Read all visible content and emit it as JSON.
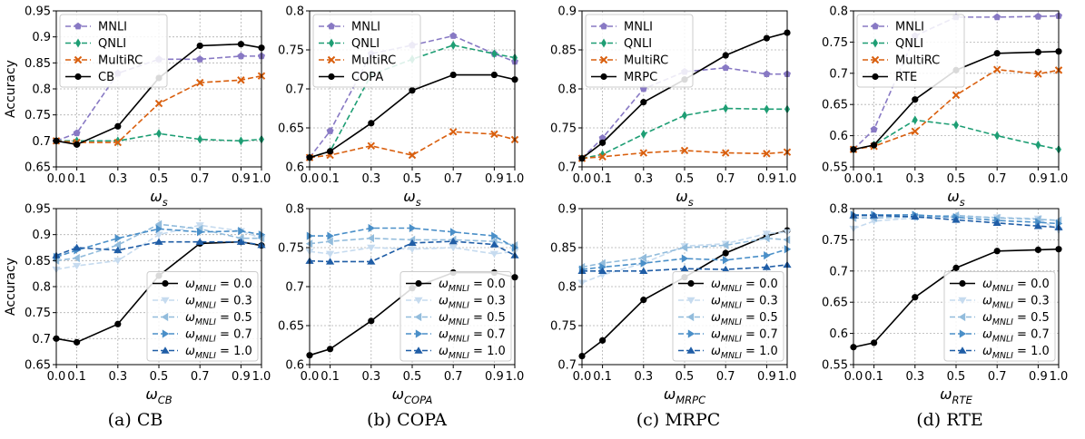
{
  "captions": [
    "(a) CB",
    "(b) COPA",
    "(c) MRPC",
    "(d) RTE"
  ],
  "colors": {
    "MNLI": "#8879c4",
    "QNLI": "#1e9e74",
    "MultiRC": "#d95f0e",
    "target": "#000000",
    "w03": "#c6dbef",
    "w05": "#92bcdc",
    "w07": "#4a8fc8",
    "w10": "#1f5da6"
  },
  "chart_data": [
    {
      "type": "line",
      "row": 0,
      "col": 0,
      "ylabel": "Accuracy",
      "xlabel_base": "ω",
      "xlabel_sub": "s",
      "x": [
        0.0,
        0.1,
        0.3,
        0.5,
        0.7,
        0.9,
        1.0
      ],
      "xticks": [
        "0.0",
        "0.1",
        "0.3",
        "0.5",
        "0.7",
        "0.9",
        "1.0"
      ],
      "ylim": [
        0.65,
        0.95
      ],
      "yticks": [
        "0.65",
        "0.7",
        "0.75",
        "0.8",
        "0.85",
        "0.9",
        "0.95"
      ],
      "legend_loc": "top-left",
      "grid": true,
      "series": [
        {
          "name": "MNLI",
          "color_key": "MNLI",
          "marker": "pentagon",
          "dash": "dashed",
          "values": [
            0.7,
            0.715,
            0.83,
            0.857,
            0.857,
            0.863,
            0.863
          ]
        },
        {
          "name": "QNLI",
          "color_key": "QNLI",
          "marker": "diamond",
          "dash": "dashed",
          "values": [
            0.7,
            0.7,
            0.7,
            0.714,
            0.703,
            0.7,
            0.703
          ]
        },
        {
          "name": "MultiRC",
          "color_key": "MultiRC",
          "marker": "x",
          "dash": "dashed",
          "values": [
            0.7,
            0.697,
            0.697,
            0.772,
            0.812,
            0.817,
            0.825
          ]
        },
        {
          "name": "CB",
          "color_key": "target",
          "marker": "circle",
          "dash": "solid",
          "values": [
            0.7,
            0.693,
            0.728,
            0.821,
            0.883,
            0.886,
            0.879
          ]
        }
      ]
    },
    {
      "type": "line",
      "row": 0,
      "col": 1,
      "ylabel": "",
      "xlabel_base": "ω",
      "xlabel_sub": "s",
      "x": [
        0.0,
        0.1,
        0.3,
        0.5,
        0.7,
        0.9,
        1.0
      ],
      "xticks": [
        "0.0",
        "0.1",
        "0.3",
        "0.5",
        "0.7",
        "0.9",
        "1.0"
      ],
      "ylim": [
        0.6,
        0.8
      ],
      "yticks": [
        "0.6",
        "0.65",
        "0.7",
        "0.75",
        "0.8"
      ],
      "legend_loc": "top-left",
      "grid": true,
      "series": [
        {
          "name": "MNLI",
          "color_key": "MNLI",
          "marker": "pentagon",
          "dash": "dashed",
          "values": [
            0.612,
            0.646,
            0.745,
            0.756,
            0.768,
            0.745,
            0.735
          ]
        },
        {
          "name": "QNLI",
          "color_key": "QNLI",
          "marker": "diamond",
          "dash": "dashed",
          "values": [
            0.612,
            0.62,
            0.718,
            0.738,
            0.756,
            0.745,
            0.74
          ]
        },
        {
          "name": "MultiRC",
          "color_key": "MultiRC",
          "marker": "x",
          "dash": "dashed",
          "values": [
            0.612,
            0.615,
            0.627,
            0.615,
            0.645,
            0.642,
            0.635
          ]
        },
        {
          "name": "COPA",
          "color_key": "target",
          "marker": "circle",
          "dash": "solid",
          "values": [
            0.612,
            0.62,
            0.656,
            0.698,
            0.718,
            0.718,
            0.712
          ]
        }
      ]
    },
    {
      "type": "line",
      "row": 0,
      "col": 2,
      "ylabel": "",
      "xlabel_base": "ω",
      "xlabel_sub": "s",
      "x": [
        0.0,
        0.1,
        0.3,
        0.5,
        0.7,
        0.9,
        1.0
      ],
      "xticks": [
        "0.0",
        "0.1",
        "0.3",
        "0.5",
        "0.7",
        "0.9",
        "1.0"
      ],
      "ylim": [
        0.7,
        0.9
      ],
      "yticks": [
        "0.7",
        "0.75",
        "0.8",
        "0.85",
        "0.9"
      ],
      "legend_loc": "top-left",
      "grid": true,
      "series": [
        {
          "name": "MNLI",
          "color_key": "MNLI",
          "marker": "pentagon",
          "dash": "dashed",
          "values": [
            0.711,
            0.737,
            0.8,
            0.822,
            0.827,
            0.819,
            0.819
          ]
        },
        {
          "name": "QNLI",
          "color_key": "QNLI",
          "marker": "diamond",
          "dash": "dashed",
          "values": [
            0.711,
            0.716,
            0.742,
            0.766,
            0.775,
            0.774,
            0.774
          ]
        },
        {
          "name": "MultiRC",
          "color_key": "MultiRC",
          "marker": "x",
          "dash": "dashed",
          "values": [
            0.711,
            0.713,
            0.718,
            0.721,
            0.718,
            0.717,
            0.719
          ]
        },
        {
          "name": "MRPC",
          "color_key": "target",
          "marker": "circle",
          "dash": "solid",
          "values": [
            0.711,
            0.731,
            0.783,
            0.812,
            0.843,
            0.865,
            0.872
          ]
        }
      ]
    },
    {
      "type": "line",
      "row": 0,
      "col": 3,
      "ylabel": "",
      "xlabel_base": "ω",
      "xlabel_sub": "s",
      "x": [
        0.0,
        0.1,
        0.3,
        0.5,
        0.7,
        0.9,
        1.0
      ],
      "xticks": [
        "0.0",
        "0.1",
        "0.3",
        "0.5",
        "0.7",
        "0.9",
        "1.0"
      ],
      "ylim": [
        0.55,
        0.8
      ],
      "yticks": [
        "0.55",
        "0.6",
        "0.65",
        "0.7",
        "0.75",
        "0.8"
      ],
      "legend_loc": "top-left",
      "grid": true,
      "series": [
        {
          "name": "MNLI",
          "color_key": "MNLI",
          "marker": "pentagon",
          "dash": "dashed",
          "values": [
            0.578,
            0.61,
            0.76,
            0.79,
            0.79,
            0.791,
            0.792
          ]
        },
        {
          "name": "QNLI",
          "color_key": "QNLI",
          "marker": "diamond",
          "dash": "dashed",
          "values": [
            0.578,
            0.585,
            0.625,
            0.617,
            0.6,
            0.585,
            0.578
          ]
        },
        {
          "name": "MultiRC",
          "color_key": "MultiRC",
          "marker": "x",
          "dash": "dashed",
          "values": [
            0.578,
            0.583,
            0.607,
            0.665,
            0.706,
            0.699,
            0.705
          ]
        },
        {
          "name": "RTE",
          "color_key": "target",
          "marker": "circle",
          "dash": "solid",
          "values": [
            0.578,
            0.585,
            0.658,
            0.705,
            0.732,
            0.734,
            0.735
          ]
        }
      ]
    },
    {
      "type": "line",
      "row": 1,
      "col": 0,
      "ylabel": "Accuracy",
      "xlabel_base": "ω",
      "xlabel_sub": "CB",
      "x": [
        0.0,
        0.1,
        0.3,
        0.5,
        0.7,
        0.9,
        1.0
      ],
      "xticks": [
        "0.0",
        "0.1",
        "0.3",
        "0.5",
        "0.7",
        "0.9",
        "1.0"
      ],
      "ylim": [
        0.65,
        0.95
      ],
      "yticks": [
        "0.65",
        "0.7",
        "0.75",
        "0.8",
        "0.85",
        "0.9",
        "0.95"
      ],
      "legend_loc": "bottom-right",
      "grid": true,
      "series": [
        {
          "name_base": "ω",
          "name_sub": "MNLI",
          "name_rest": " = 0.0",
          "color_key": "target",
          "marker": "circle",
          "dash": "solid",
          "values": [
            0.7,
            0.693,
            0.728,
            0.821,
            0.883,
            0.886,
            0.879
          ]
        },
        {
          "name_base": "ω",
          "name_sub": "MNLI",
          "name_rest": " = 0.3",
          "color_key": "w03",
          "marker": "tri-down",
          "dash": "dashed",
          "values": [
            0.833,
            0.84,
            0.85,
            0.9,
            0.918,
            0.907,
            0.893
          ]
        },
        {
          "name_base": "ω",
          "name_sub": "MNLI",
          "name_rest": " = 0.5",
          "color_key": "w05",
          "marker": "tri-left",
          "dash": "dashed",
          "values": [
            0.85,
            0.855,
            0.88,
            0.92,
            0.911,
            0.893,
            0.893
          ]
        },
        {
          "name_base": "ω",
          "name_sub": "MNLI",
          "name_rest": " = 0.7",
          "color_key": "w07",
          "marker": "tri-right",
          "dash": "dashed",
          "values": [
            0.857,
            0.87,
            0.893,
            0.911,
            0.905,
            0.907,
            0.9
          ]
        },
        {
          "name_base": "ω",
          "name_sub": "MNLI",
          "name_rest": " = 1.0",
          "color_key": "w10",
          "marker": "tri-up",
          "dash": "dashed",
          "values": [
            0.86,
            0.875,
            0.87,
            0.886,
            0.886,
            0.886,
            0.88
          ]
        }
      ]
    },
    {
      "type": "line",
      "row": 1,
      "col": 1,
      "ylabel": "",
      "xlabel_base": "ω",
      "xlabel_sub": "COPA",
      "x": [
        0.0,
        0.1,
        0.3,
        0.5,
        0.7,
        0.9,
        1.0
      ],
      "xticks": [
        "0.0",
        "0.1",
        "0.3",
        "0.5",
        "0.7",
        "0.9",
        "1.0"
      ],
      "ylim": [
        0.6,
        0.8
      ],
      "yticks": [
        "0.6",
        "0.65",
        "0.7",
        "0.75",
        "0.8"
      ],
      "legend_loc": "bottom-right",
      "grid": true,
      "series": [
        {
          "name_base": "ω",
          "name_sub": "MNLI",
          "name_rest": " = 0.0",
          "color_key": "target",
          "marker": "circle",
          "dash": "solid",
          "values": [
            0.612,
            0.62,
            0.656,
            0.698,
            0.718,
            0.718,
            0.712
          ]
        },
        {
          "name_base": "ω",
          "name_sub": "MNLI",
          "name_rest": " = 0.3",
          "color_key": "w03",
          "marker": "tri-down",
          "dash": "dashed",
          "values": [
            0.745,
            0.742,
            0.75,
            0.748,
            0.75,
            0.742,
            0.745
          ]
        },
        {
          "name_base": "ω",
          "name_sub": "MNLI",
          "name_rest": " = 0.5",
          "color_key": "w05",
          "marker": "tri-left",
          "dash": "dashed",
          "values": [
            0.755,
            0.758,
            0.762,
            0.76,
            0.76,
            0.758,
            0.753
          ]
        },
        {
          "name_base": "ω",
          "name_sub": "MNLI",
          "name_rest": " = 0.7",
          "color_key": "w07",
          "marker": "tri-right",
          "dash": "dashed",
          "values": [
            0.765,
            0.765,
            0.775,
            0.775,
            0.77,
            0.765,
            0.75
          ]
        },
        {
          "name_base": "ω",
          "name_sub": "MNLI",
          "name_rest": " = 1.0",
          "color_key": "w10",
          "marker": "tri-up",
          "dash": "dashed",
          "values": [
            0.733,
            0.732,
            0.732,
            0.756,
            0.758,
            0.754,
            0.74
          ]
        }
      ]
    },
    {
      "type": "line",
      "row": 1,
      "col": 2,
      "ylabel": "",
      "xlabel_base": "ω",
      "xlabel_sub": "MRPC",
      "x": [
        0.0,
        0.1,
        0.3,
        0.5,
        0.7,
        0.9,
        1.0
      ],
      "xticks": [
        "0.0",
        "0.1",
        "0.3",
        "0.5",
        "0.7",
        "0.9",
        "1.0"
      ],
      "ylim": [
        0.7,
        0.9
      ],
      "yticks": [
        "0.7",
        "0.75",
        "0.8",
        "0.85",
        "0.9"
      ],
      "legend_loc": "bottom-right",
      "grid": true,
      "series": [
        {
          "name_base": "ω",
          "name_sub": "MNLI",
          "name_rest": " = 0.0",
          "color_key": "target",
          "marker": "circle",
          "dash": "solid",
          "values": [
            0.711,
            0.731,
            0.783,
            0.812,
            0.843,
            0.865,
            0.872
          ]
        },
        {
          "name_base": "ω",
          "name_sub": "MNLI",
          "name_rest": " = 0.3",
          "color_key": "w03",
          "marker": "tri-down",
          "dash": "dashed",
          "values": [
            0.805,
            0.815,
            0.83,
            0.852,
            0.855,
            0.868,
            0.87
          ]
        },
        {
          "name_base": "ω",
          "name_sub": "MNLI",
          "name_rest": " = 0.5",
          "color_key": "w05",
          "marker": "tri-left",
          "dash": "dashed",
          "values": [
            0.825,
            0.83,
            0.837,
            0.85,
            0.853,
            0.862,
            0.86
          ]
        },
        {
          "name_base": "ω",
          "name_sub": "MNLI",
          "name_rest": " = 0.7",
          "color_key": "w07",
          "marker": "tri-right",
          "dash": "dashed",
          "values": [
            0.822,
            0.825,
            0.83,
            0.836,
            0.834,
            0.84,
            0.848
          ]
        },
        {
          "name_base": "ω",
          "name_sub": "MNLI",
          "name_rest": " = 1.0",
          "color_key": "w10",
          "marker": "tri-up",
          "dash": "dashed",
          "values": [
            0.82,
            0.82,
            0.82,
            0.823,
            0.822,
            0.825,
            0.828
          ]
        }
      ]
    },
    {
      "type": "line",
      "row": 1,
      "col": 3,
      "ylabel": "",
      "xlabel_base": "ω",
      "xlabel_sub": "RTE",
      "x": [
        0.0,
        0.1,
        0.3,
        0.5,
        0.7,
        0.9,
        1.0
      ],
      "xticks": [
        "0.0",
        "0.1",
        "0.3",
        "0.5",
        "0.7",
        "0.9",
        "1.0"
      ],
      "ylim": [
        0.55,
        0.8
      ],
      "yticks": [
        "0.55",
        "0.6",
        "0.65",
        "0.7",
        "0.75",
        "0.8"
      ],
      "legend_loc": "bottom-right",
      "grid": true,
      "series": [
        {
          "name_base": "ω",
          "name_sub": "MNLI",
          "name_rest": " = 0.0",
          "color_key": "target",
          "marker": "circle",
          "dash": "solid",
          "values": [
            0.578,
            0.585,
            0.658,
            0.705,
            0.732,
            0.734,
            0.735
          ]
        },
        {
          "name_base": "ω",
          "name_sub": "MNLI",
          "name_rest": " = 0.3",
          "color_key": "w03",
          "marker": "tri-down",
          "dash": "dashed",
          "values": [
            0.768,
            0.78,
            0.785,
            0.787,
            0.786,
            0.784,
            0.765
          ]
        },
        {
          "name_base": "ω",
          "name_sub": "MNLI",
          "name_rest": " = 0.5",
          "color_key": "w05",
          "marker": "tri-left",
          "dash": "dashed",
          "values": [
            0.785,
            0.785,
            0.787,
            0.789,
            0.785,
            0.783,
            0.781
          ]
        },
        {
          "name_base": "ω",
          "name_sub": "MNLI",
          "name_rest": " = 0.7",
          "color_key": "w07",
          "marker": "tri-right",
          "dash": "dashed",
          "values": [
            0.79,
            0.79,
            0.79,
            0.786,
            0.781,
            0.778,
            0.776
          ]
        },
        {
          "name_base": "ω",
          "name_sub": "MNLI",
          "name_rest": " = 1.0",
          "color_key": "w10",
          "marker": "tri-up",
          "dash": "dashed",
          "values": [
            0.789,
            0.789,
            0.787,
            0.782,
            0.777,
            0.772,
            0.77
          ]
        }
      ]
    }
  ]
}
